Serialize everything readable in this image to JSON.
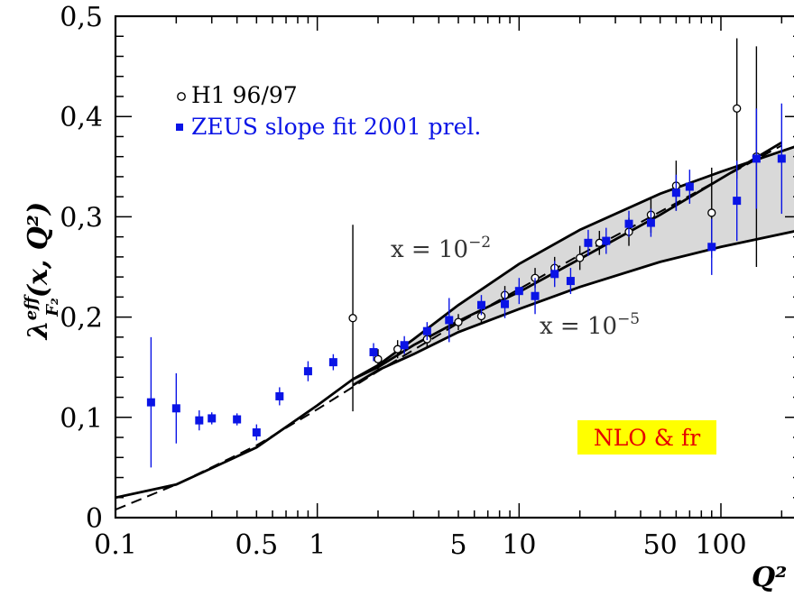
{
  "chart_data": {
    "type": "scatter",
    "x_scale": "log",
    "xlim": [
      0.1,
      250
    ],
    "ylim": [
      0,
      0.5
    ],
    "x_ticks": [
      {
        "value": 0.1,
        "label": "0.1"
      },
      {
        "value": 0.5,
        "label": "0.5"
      },
      {
        "value": 1,
        "label": "1"
      },
      {
        "value": 5,
        "label": "5"
      },
      {
        "value": 10,
        "label": "10"
      },
      {
        "value": 50,
        "label": "50"
      },
      {
        "value": 100,
        "label": "100"
      }
    ],
    "y_ticks": [
      {
        "value": 0,
        "label": "0"
      },
      {
        "value": 0.1,
        "label": "0,1"
      },
      {
        "value": 0.2,
        "label": "0,2"
      },
      {
        "value": 0.3,
        "label": "0,3"
      },
      {
        "value": 0.4,
        "label": "0,4"
      },
      {
        "value": 0.5,
        "label": "0,5"
      }
    ],
    "xlabel": "Q²",
    "ylabel": {
      "base": "λ",
      "sup": "eff",
      "sub": "F₂",
      "args": "(x, Q²)"
    },
    "legend_position": "top-left",
    "series": [
      {
        "name": "H1 96/97",
        "marker": "open-circle",
        "color": "#000000",
        "points": [
          {
            "x": 1.5,
            "y": 0.199,
            "err": 0.093
          },
          {
            "x": 2.0,
            "y": 0.158,
            "err": 0.01
          },
          {
            "x": 2.5,
            "y": 0.168,
            "err": 0.009
          },
          {
            "x": 3.5,
            "y": 0.178,
            "err": 0.008
          },
          {
            "x": 5.0,
            "y": 0.195,
            "err": 0.008
          },
          {
            "x": 6.5,
            "y": 0.201,
            "err": 0.008
          },
          {
            "x": 8.5,
            "y": 0.222,
            "err": 0.009
          },
          {
            "x": 12,
            "y": 0.239,
            "err": 0.01
          },
          {
            "x": 15,
            "y": 0.249,
            "err": 0.011
          },
          {
            "x": 20,
            "y": 0.259,
            "err": 0.012
          },
          {
            "x": 25,
            "y": 0.274,
            "err": 0.012
          },
          {
            "x": 35,
            "y": 0.285,
            "err": 0.014
          },
          {
            "x": 45,
            "y": 0.302,
            "err": 0.018
          },
          {
            "x": 60,
            "y": 0.331,
            "err": 0.025
          },
          {
            "x": 90,
            "y": 0.304,
            "err": 0.045
          },
          {
            "x": 120,
            "y": 0.408,
            "err": 0.07
          },
          {
            "x": 150,
            "y": 0.36,
            "err": 0.11
          }
        ]
      },
      {
        "name": "ZEUS slope fit 2001 prel.",
        "marker": "filled-square",
        "color": "#0a14e6",
        "points": [
          {
            "x": 0.15,
            "y": 0.115,
            "err": 0.065
          },
          {
            "x": 0.2,
            "y": 0.109,
            "err": 0.035
          },
          {
            "x": 0.26,
            "y": 0.097,
            "err": 0.01
          },
          {
            "x": 0.3,
            "y": 0.099,
            "err": 0.006
          },
          {
            "x": 0.4,
            "y": 0.098,
            "err": 0.006
          },
          {
            "x": 0.5,
            "y": 0.085,
            "err": 0.008
          },
          {
            "x": 0.65,
            "y": 0.121,
            "err": 0.009
          },
          {
            "x": 0.9,
            "y": 0.146,
            "err": 0.01
          },
          {
            "x": 1.2,
            "y": 0.155,
            "err": 0.008
          },
          {
            "x": 1.9,
            "y": 0.165,
            "err": 0.009
          },
          {
            "x": 2.7,
            "y": 0.172,
            "err": 0.009
          },
          {
            "x": 3.5,
            "y": 0.186,
            "err": 0.009
          },
          {
            "x": 4.5,
            "y": 0.197,
            "err": 0.022
          },
          {
            "x": 6.5,
            "y": 0.212,
            "err": 0.01
          },
          {
            "x": 8.5,
            "y": 0.213,
            "err": 0.014
          },
          {
            "x": 10,
            "y": 0.226,
            "err": 0.013
          },
          {
            "x": 12,
            "y": 0.221,
            "err": 0.018
          },
          {
            "x": 15,
            "y": 0.243,
            "err": 0.013
          },
          {
            "x": 18,
            "y": 0.236,
            "err": 0.013
          },
          {
            "x": 22,
            "y": 0.274,
            "err": 0.013
          },
          {
            "x": 27,
            "y": 0.276,
            "err": 0.013
          },
          {
            "x": 35,
            "y": 0.293,
            "err": 0.013
          },
          {
            "x": 45,
            "y": 0.294,
            "err": 0.014
          },
          {
            "x": 60,
            "y": 0.324,
            "err": 0.018
          },
          {
            "x": 70,
            "y": 0.33,
            "err": 0.017
          },
          {
            "x": 90,
            "y": 0.27,
            "err": 0.028
          },
          {
            "x": 120,
            "y": 0.316,
            "err": 0.04
          },
          {
            "x": 150,
            "y": 0.358,
            "err": 0.05
          },
          {
            "x": 200,
            "y": 0.358,
            "err": 0.055
          }
        ]
      }
    ],
    "curves": [
      {
        "label": "x = 10⁻²",
        "style": "solid",
        "points": [
          [
            0.1,
            0.02
          ],
          [
            0.2,
            0.033
          ],
          [
            0.5,
            0.07
          ],
          [
            1,
            0.112
          ],
          [
            1.5,
            0.138
          ],
          [
            2,
            0.152
          ],
          [
            3,
            0.178
          ],
          [
            5,
            0.212
          ],
          [
            10,
            0.253
          ],
          [
            20,
            0.287
          ],
          [
            50,
            0.323
          ],
          [
            100,
            0.345
          ],
          [
            250,
            0.372
          ]
        ]
      },
      {
        "label": "x = 10⁻⁵",
        "style": "solid",
        "points": [
          [
            1.5,
            0.132
          ],
          [
            2,
            0.147
          ],
          [
            3,
            0.163
          ],
          [
            5,
            0.185
          ],
          [
            10,
            0.208
          ],
          [
            20,
            0.23
          ],
          [
            50,
            0.255
          ],
          [
            100,
            0.27
          ],
          [
            250,
            0.287
          ]
        ]
      },
      {
        "label": "",
        "style": "solid",
        "points": [
          [
            1.5,
            0.138
          ],
          [
            2,
            0.15
          ],
          [
            3,
            0.172
          ],
          [
            5,
            0.196
          ],
          [
            10,
            0.225
          ],
          [
            20,
            0.258
          ],
          [
            50,
            0.302
          ],
          [
            100,
            0.338
          ],
          [
            200,
            0.374
          ]
        ]
      },
      {
        "label": "",
        "style": "dashed",
        "points": [
          [
            0.1,
            0.008
          ],
          [
            0.2,
            0.033
          ],
          [
            0.5,
            0.072
          ],
          [
            1,
            0.108
          ],
          [
            2,
            0.146
          ],
          [
            5,
            0.194
          ],
          [
            10,
            0.228
          ],
          [
            20,
            0.262
          ],
          [
            50,
            0.305
          ],
          [
            100,
            0.338
          ],
          [
            200,
            0.371
          ]
        ]
      }
    ],
    "annotations": [
      {
        "text_base": "x = 10",
        "text_sup": "−2",
        "x": 2.3,
        "y": 0.265
      },
      {
        "text_base": "x = 10",
        "text_sup": "−5",
        "x": 13,
        "y": 0.187
      }
    ],
    "badge": {
      "text": "NLO & fr",
      "background": "#ffff00",
      "color": "#e60000"
    }
  }
}
